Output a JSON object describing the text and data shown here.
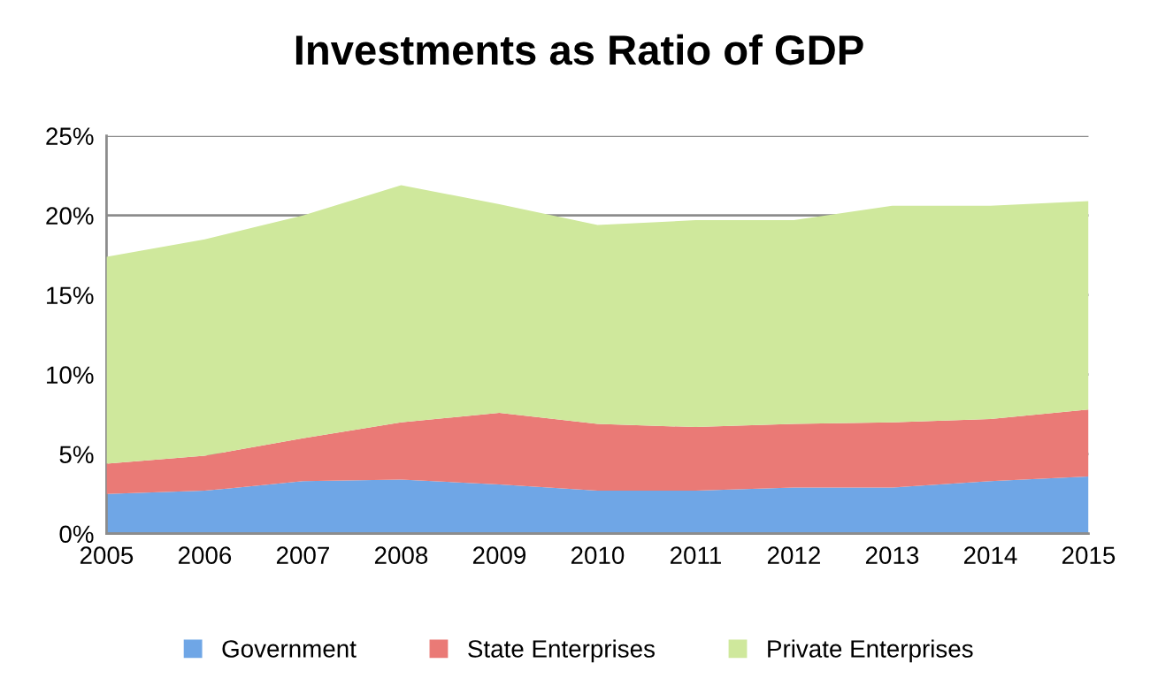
{
  "chart_data": {
    "type": "area",
    "title": "Investments as Ratio of GDP",
    "stacked": true,
    "categories": [
      "2005",
      "2006",
      "2007",
      "2008",
      "2009",
      "2010",
      "2011",
      "2012",
      "2013",
      "2014",
      "2015"
    ],
    "series": [
      {
        "name": "Government",
        "color": "#6fa6e6",
        "values": [
          2.5,
          2.7,
          3.3,
          3.4,
          3.1,
          2.7,
          2.7,
          2.9,
          2.9,
          3.3,
          3.6
        ]
      },
      {
        "name": "State Enterprises",
        "color": "#ea7a76",
        "values": [
          1.9,
          2.2,
          2.7,
          3.6,
          4.5,
          4.2,
          4.0,
          4.0,
          4.1,
          3.9,
          4.2
        ]
      },
      {
        "name": "Private Enterprises",
        "color": "#cfe89c",
        "values": [
          13.0,
          13.6,
          14.0,
          14.9,
          13.1,
          12.5,
          13.0,
          12.8,
          13.6,
          13.4,
          13.1
        ]
      }
    ],
    "ylim": [
      0,
      25
    ],
    "yticks": [
      {
        "value": 0,
        "label": "0%"
      },
      {
        "value": 5,
        "label": "5%"
      },
      {
        "value": 10,
        "label": "10%"
      },
      {
        "value": 15,
        "label": "15%"
      },
      {
        "value": 20,
        "label": "20%"
      },
      {
        "value": 25,
        "label": "25%"
      }
    ],
    "grid": "y",
    "legend": "bottom"
  }
}
